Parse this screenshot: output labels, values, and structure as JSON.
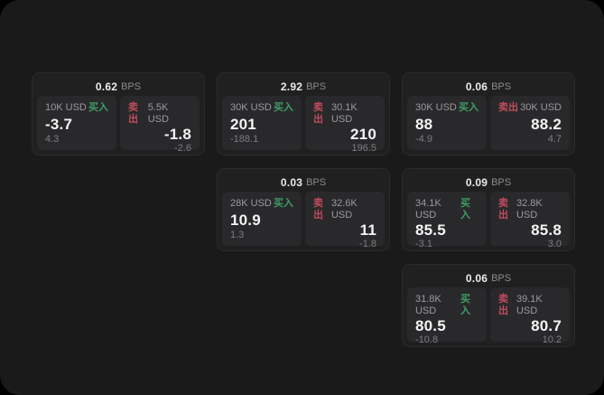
{
  "app": {
    "frame_background": "#1a1a1b",
    "outside_background": "#000000"
  },
  "labels": {
    "buy": "买入",
    "sell": "卖出",
    "bps": "BPS"
  },
  "colors": {
    "buy": "#3f9e66",
    "sell": "#c04b5d",
    "card_background": "#202021",
    "panel_background": "#29292b",
    "price_text": "#f4f4f5",
    "muted_text": "#9b9b9d"
  },
  "cards": [
    {
      "bps": "0.62",
      "buy": {
        "amount": "10K USD",
        "price": "-3.7",
        "delta": "4.3"
      },
      "sell": {
        "amount": "5.5K USD",
        "price": "-1.8",
        "delta": "-2.6"
      }
    },
    {
      "bps": "2.92",
      "buy": {
        "amount": "30K USD",
        "price": "201",
        "delta": "-188.1"
      },
      "sell": {
        "amount": "30.1K USD",
        "price": "210",
        "delta": "196.5"
      }
    },
    {
      "bps": "0.06",
      "buy": {
        "amount": "30K USD",
        "price": "88",
        "delta": "-4.9"
      },
      "sell": {
        "amount": "30K USD",
        "price": "88.2",
        "delta": "4.7"
      }
    },
    {
      "bps": "0.03",
      "buy": {
        "amount": "28K USD",
        "price": "10.9",
        "delta": "1.3"
      },
      "sell": {
        "amount": "32.6K USD",
        "price": "11",
        "delta": "-1.8"
      }
    },
    {
      "bps": "0.09",
      "buy": {
        "amount": "34.1K USD",
        "price": "85.5",
        "delta": "-3.1"
      },
      "sell": {
        "amount": "32.8K USD",
        "price": "85.8",
        "delta": "3.0"
      }
    },
    {
      "bps": "0.06",
      "buy": {
        "amount": "31.8K USD",
        "price": "80.5",
        "delta": "-10.8"
      },
      "sell": {
        "amount": "39.1K USD",
        "price": "80.7",
        "delta": "10.2"
      }
    }
  ]
}
